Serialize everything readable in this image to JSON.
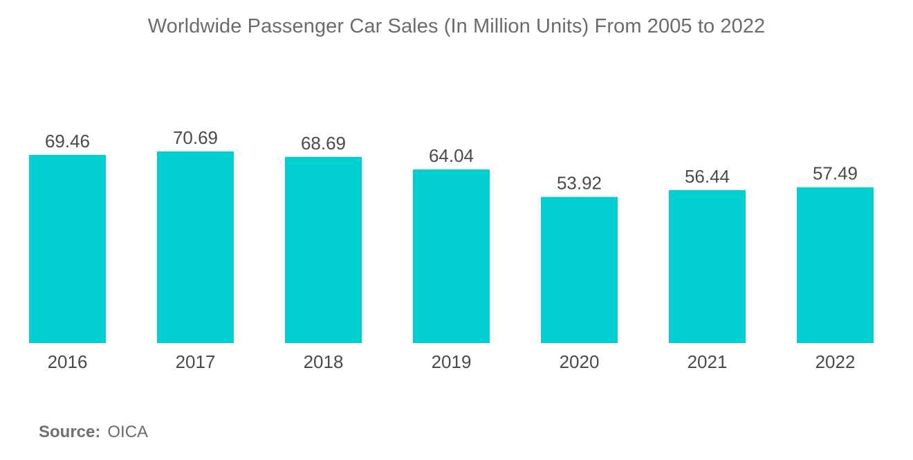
{
  "chart_data": {
    "type": "bar",
    "title": "Worldwide Passenger Car Sales (In Million Units) From 2005 to 2022",
    "categories": [
      "2016",
      "2017",
      "2018",
      "2019",
      "2020",
      "2021",
      "2022"
    ],
    "values": [
      69.46,
      70.69,
      68.69,
      64.04,
      53.92,
      56.44,
      57.49
    ],
    "value_labels": [
      "69.46",
      "70.69",
      "68.69",
      "64.04",
      "53.92",
      "56.44",
      "57.49"
    ],
    "xlabel": "",
    "ylabel": "",
    "ylim": [
      0,
      70.69
    ],
    "grid": false,
    "legend": "none",
    "bar_color": "#00ced1"
  },
  "source": {
    "label": "Source:",
    "value": "OICA"
  }
}
